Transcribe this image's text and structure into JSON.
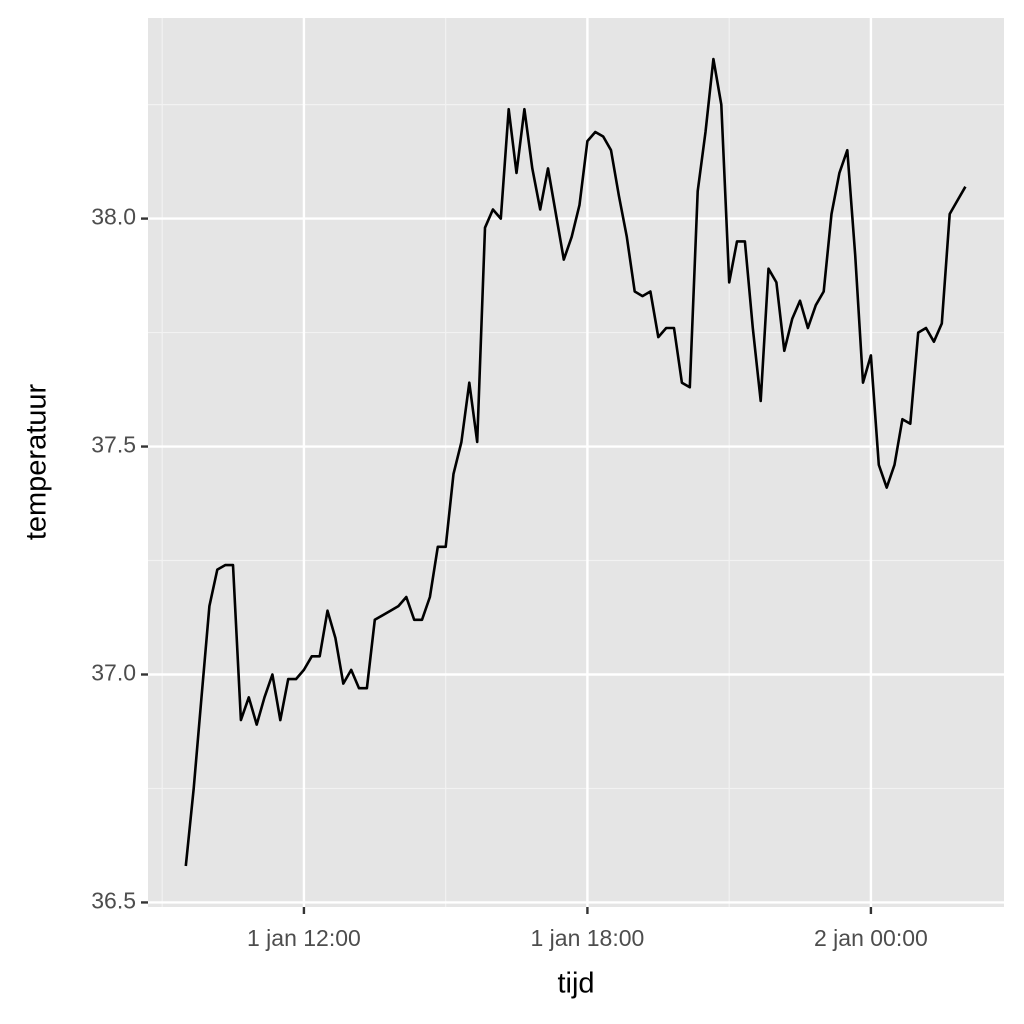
{
  "chart_data": {
    "type": "line",
    "x_label": "tijd",
    "y_label": "temperatuur",
    "x": [
      "1 jan 09:30",
      "1 jan 09:40",
      "1 jan 09:50",
      "1 jan 10:00",
      "1 jan 10:10",
      "1 jan 10:20",
      "1 jan 10:30",
      "1 jan 10:40",
      "1 jan 10:50",
      "1 jan 11:00",
      "1 jan 11:10",
      "1 jan 11:20",
      "1 jan 11:30",
      "1 jan 11:40",
      "1 jan 11:50",
      "1 jan 12:00",
      "1 jan 12:10",
      "1 jan 12:20",
      "1 jan 12:30",
      "1 jan 12:40",
      "1 jan 12:50",
      "1 jan 13:00",
      "1 jan 13:10",
      "1 jan 13:20",
      "1 jan 13:30",
      "1 jan 13:40",
      "1 jan 13:50",
      "1 jan 14:00",
      "1 jan 14:10",
      "1 jan 14:20",
      "1 jan 14:30",
      "1 jan 14:40",
      "1 jan 14:50",
      "1 jan 15:00",
      "1 jan 15:10",
      "1 jan 15:20",
      "1 jan 15:30",
      "1 jan 15:40",
      "1 jan 15:50",
      "1 jan 16:00",
      "1 jan 16:10",
      "1 jan 16:20",
      "1 jan 16:30",
      "1 jan 16:40",
      "1 jan 16:50",
      "1 jan 17:00",
      "1 jan 17:10",
      "1 jan 17:20",
      "1 jan 17:30",
      "1 jan 17:40",
      "1 jan 17:50",
      "1 jan 18:00",
      "1 jan 18:10",
      "1 jan 18:20",
      "1 jan 18:30",
      "1 jan 18:40",
      "1 jan 18:50",
      "1 jan 19:00",
      "1 jan 19:10",
      "1 jan 19:20",
      "1 jan 19:30",
      "1 jan 19:40",
      "1 jan 19:50",
      "1 jan 20:00",
      "1 jan 20:10",
      "1 jan 20:20",
      "1 jan 20:30",
      "1 jan 20:40",
      "1 jan 20:50",
      "1 jan 21:00",
      "1 jan 21:10",
      "1 jan 21:20",
      "1 jan 21:30",
      "1 jan 21:40",
      "1 jan 21:50",
      "1 jan 22:00",
      "1 jan 22:10",
      "1 jan 22:20",
      "1 jan 22:30",
      "1 jan 22:40",
      "1 jan 22:50",
      "1 jan 23:00",
      "1 jan 23:10",
      "1 jan 23:20",
      "1 jan 23:30",
      "1 jan 23:40",
      "1 jan 23:50",
      "2 jan 00:00",
      "2 jan 00:10",
      "2 jan 00:20",
      "2 jan 00:30",
      "2 jan 00:40",
      "2 jan 00:50",
      "2 jan 01:00",
      "2 jan 01:10",
      "2 jan 01:20",
      "2 jan 01:30",
      "2 jan 01:40",
      "2 jan 01:50",
      "2 jan 02:00"
    ],
    "values": [
      36.58,
      36.75,
      36.95,
      37.15,
      37.23,
      37.24,
      37.24,
      36.9,
      36.95,
      36.89,
      36.95,
      37.0,
      36.9,
      36.99,
      36.99,
      37.01,
      37.04,
      37.04,
      37.14,
      37.08,
      36.98,
      37.01,
      36.97,
      36.97,
      37.12,
      37.13,
      37.14,
      37.15,
      37.17,
      37.12,
      37.12,
      37.17,
      37.28,
      37.28,
      37.44,
      37.51,
      37.64,
      37.51,
      37.98,
      38.02,
      38.0,
      38.24,
      38.1,
      38.24,
      38.11,
      38.02,
      38.11,
      38.01,
      37.91,
      37.96,
      38.03,
      38.17,
      38.19,
      38.18,
      38.15,
      38.05,
      37.96,
      37.84,
      37.83,
      37.84,
      37.74,
      37.76,
      37.76,
      37.64,
      37.63,
      38.06,
      38.19,
      38.35,
      38.25,
      37.86,
      37.95,
      37.95,
      37.76,
      37.6,
      37.89,
      37.86,
      37.71,
      37.78,
      37.82,
      37.76,
      37.81,
      37.84,
      38.01,
      38.1,
      38.15,
      37.92,
      37.64,
      37.7,
      37.46,
      37.41,
      37.46,
      37.56,
      37.55,
      37.75,
      37.76,
      37.73,
      37.77,
      38.01,
      38.04,
      38.07
    ],
    "color": "#000000",
    "xlim": [
      "1 jan 08:42",
      "2 jan 02:49"
    ],
    "xticks": [
      "1 jan 12:00",
      "1 jan 18:00",
      "2 jan 00:00"
    ],
    "ylim": [
      36.49,
      38.44
    ],
    "yticks": [
      36.5,
      {
        "value": 37,
        "label": "37.0"
      },
      37.5,
      {
        "value": 38,
        "label": "38.0"
      }
    ],
    "grid": true
  }
}
